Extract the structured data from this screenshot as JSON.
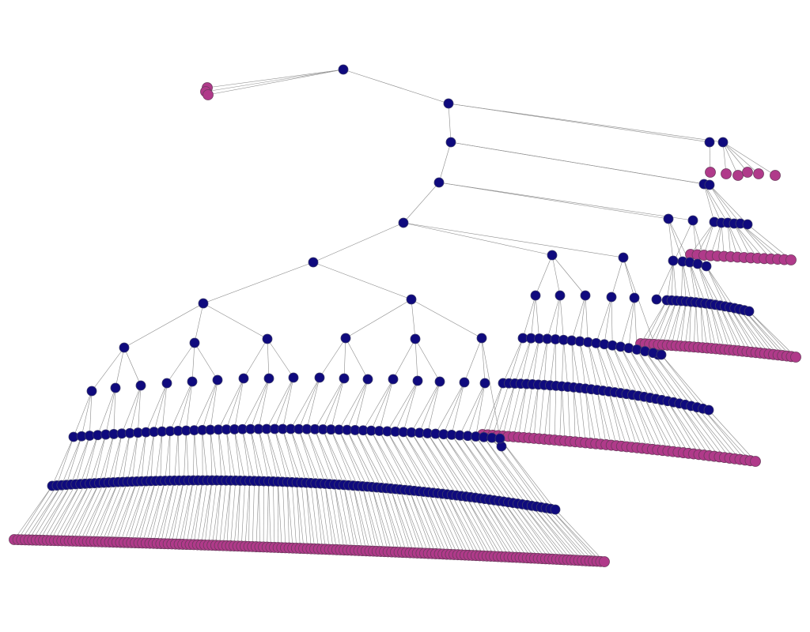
{
  "colors": {
    "internal_node": "#0f0a7e",
    "leaf_node": "#b03a8a",
    "edge": "#8c8c8c",
    "background": "#ffffff"
  },
  "tree": {
    "branching_factor": 3,
    "internal_node_color": "internal_node",
    "leaf_node_color": "leaf_node"
  }
}
